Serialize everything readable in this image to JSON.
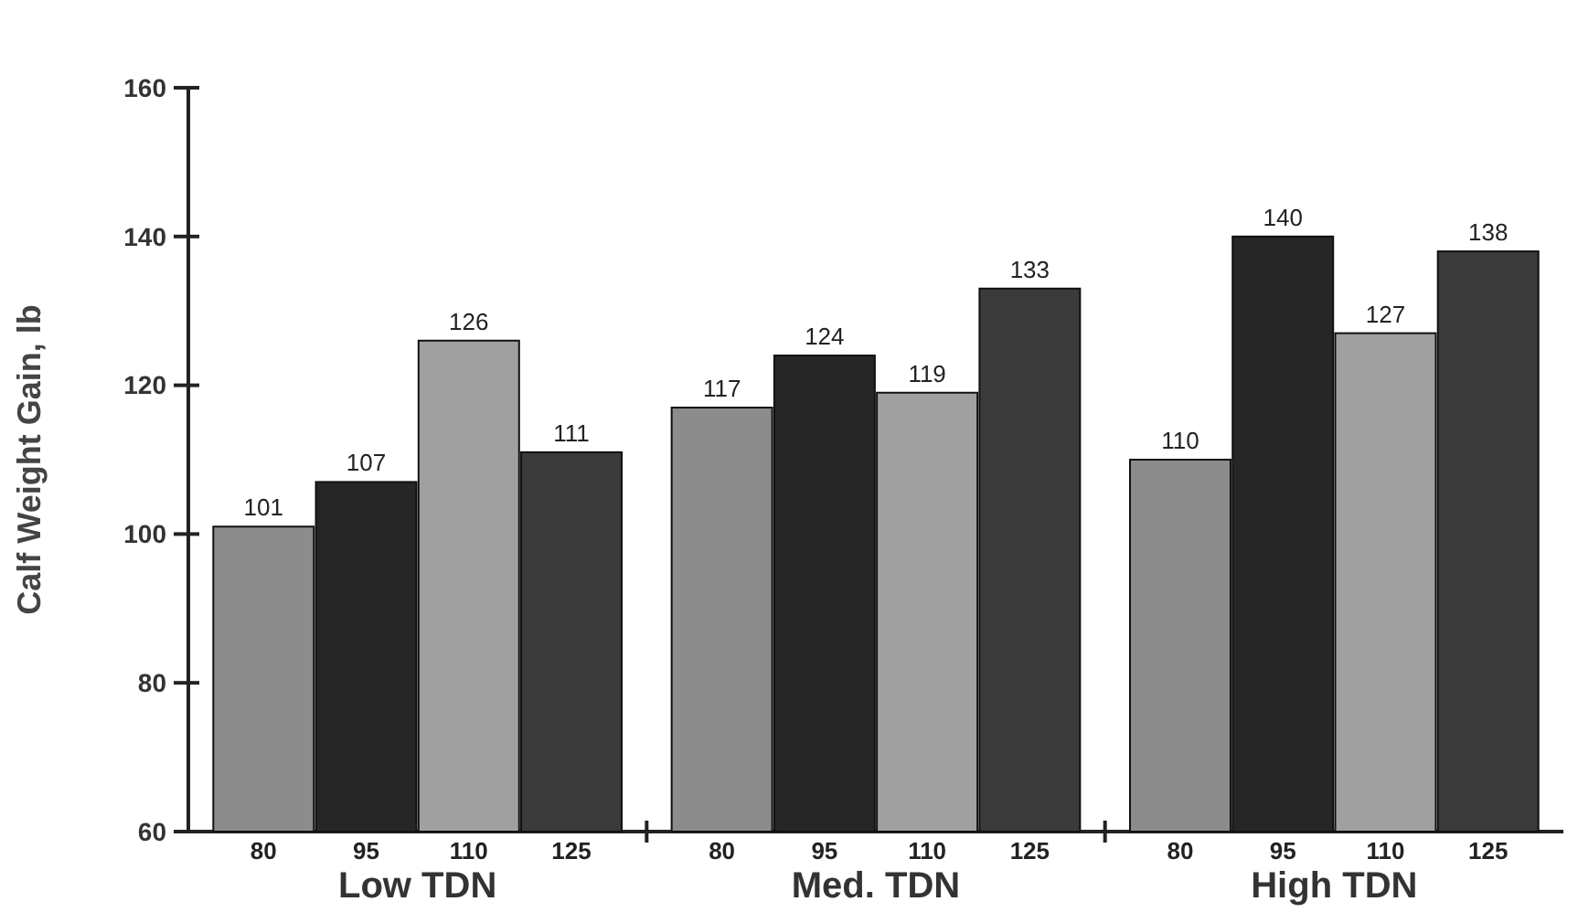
{
  "chart_data": {
    "type": "bar",
    "ylabel": "Calf Weight Gain, lb",
    "categories": [
      "Low TDN",
      "Med. TDN",
      "High TDN"
    ],
    "series": [
      {
        "name": "80",
        "color": "#8c8c8c",
        "values": [
          101,
          117,
          110
        ]
      },
      {
        "name": "95",
        "color": "#262626",
        "values": [
          107,
          124,
          140
        ]
      },
      {
        "name": "110",
        "color": "#a0a0a0",
        "values": [
          126,
          119,
          127
        ]
      },
      {
        "name": "125",
        "color": "#3a3a3a",
        "values": [
          111,
          133,
          138
        ]
      }
    ],
    "ylim": [
      60,
      160
    ],
    "yticks": [
      60,
      80,
      100,
      120,
      140,
      160
    ],
    "grid": false,
    "data_labels": true
  }
}
